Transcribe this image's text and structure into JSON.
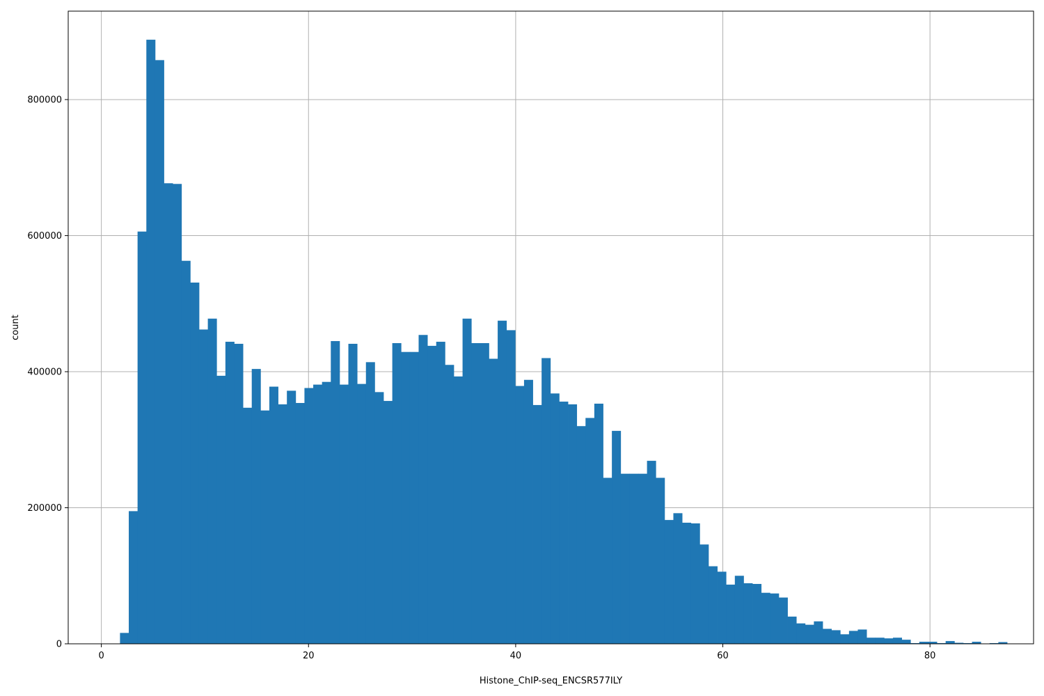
{
  "chart_data": {
    "type": "histogram",
    "xlabel": "Histone_ChIP-seq_ENCSR577ILY",
    "ylabel": "count",
    "xlim": [
      -3.2,
      90
    ],
    "ylim": [
      0,
      930000
    ],
    "x_ticks": [
      0,
      20,
      40,
      60,
      80
    ],
    "y_ticks": [
      0,
      200000,
      400000,
      600000,
      800000
    ],
    "grid": true,
    "bar_color": "#1f77b4",
    "bin_start": 1.8,
    "bin_width": 0.848,
    "values": [
      16000,
      195000,
      606000,
      888000,
      858000,
      677000,
      676000,
      563000,
      531000,
      462000,
      478000,
      394000,
      444000,
      441000,
      347000,
      404000,
      343000,
      378000,
      352000,
      372000,
      354000,
      376000,
      381000,
      385000,
      445000,
      381000,
      441000,
      382000,
      414000,
      370000,
      357000,
      442000,
      429000,
      429000,
      454000,
      438000,
      444000,
      410000,
      393000,
      478000,
      442000,
      442000,
      419000,
      475000,
      461000,
      379000,
      388000,
      351000,
      420000,
      368000,
      356000,
      352000,
      320000,
      332000,
      353000,
      244000,
      313000,
      250000,
      250000,
      250000,
      269000,
      244000,
      182000,
      192000,
      178000,
      177000,
      146000,
      114000,
      106000,
      87000,
      100000,
      89000,
      88000,
      75000,
      74000,
      68000,
      40000,
      30000,
      28000,
      33000,
      22000,
      20000,
      14000,
      19000,
      21000,
      9000,
      9000,
      8000,
      9000,
      6000,
      1000,
      3000,
      3000,
      1000,
      4000,
      1500,
      1000,
      3000,
      500,
      1000,
      2500,
      300
    ]
  }
}
